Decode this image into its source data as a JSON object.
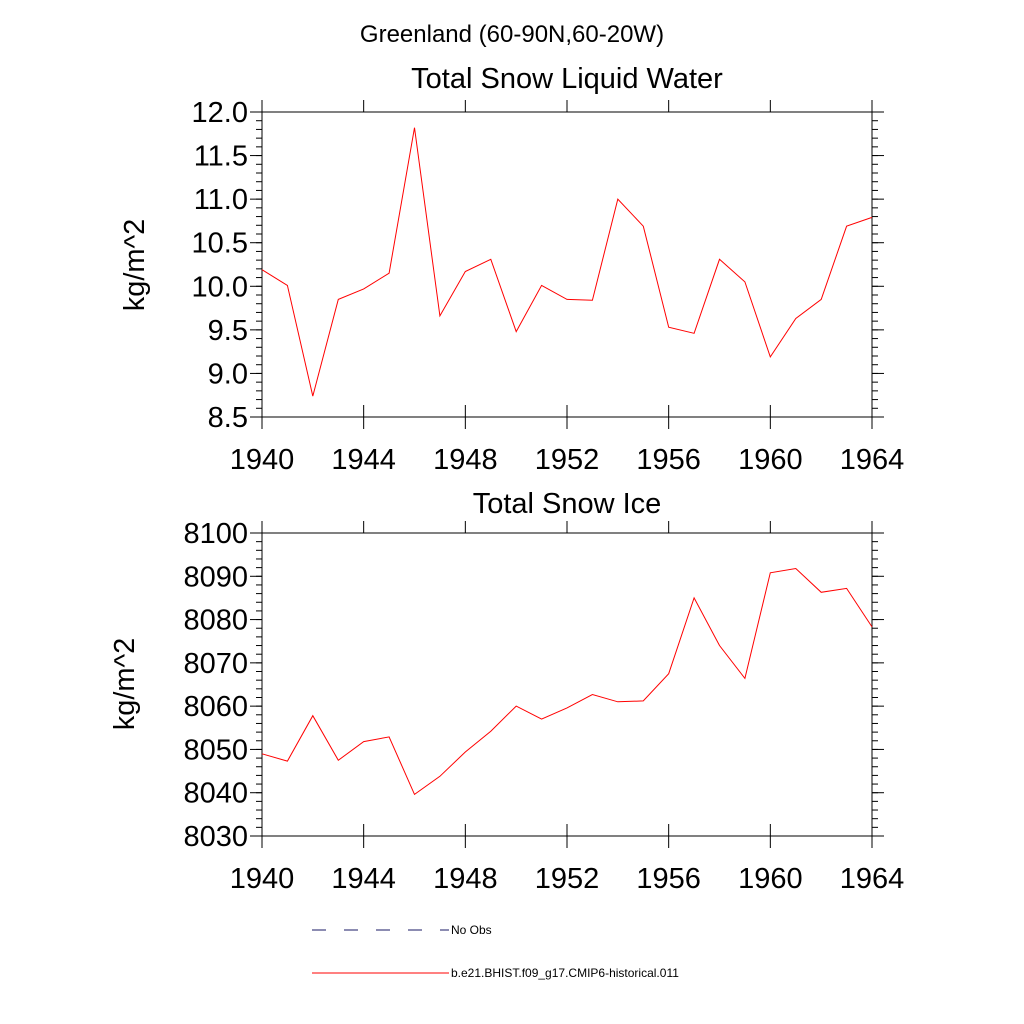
{
  "suptitle": "Greenland (60-90N,60-20W)",
  "colors": {
    "model": "#ff0000",
    "obs": "#1a1a66",
    "axis": "#000000"
  },
  "legend": [
    {
      "label": "No Obs",
      "style": "dashed",
      "color": "#1a1a66"
    },
    {
      "label": "b.e21.BHIST.f09_g17.CMIP6-historical.011",
      "style": "solid",
      "color": "#ff0000"
    }
  ],
  "chart_data": [
    {
      "type": "line",
      "title": "Total Snow Liquid Water",
      "xlabel": "",
      "ylabel": "kg/m^2",
      "xlim": [
        1940,
        1964
      ],
      "ylim": [
        8.5,
        12.0
      ],
      "xticks": [
        1940,
        1944,
        1948,
        1952,
        1956,
        1960,
        1964
      ],
      "yticks": [
        8.5,
        9.0,
        9.5,
        10.0,
        10.5,
        11.0,
        11.5,
        12.0
      ],
      "ytick_labels": [
        "8.5",
        "9.0",
        "9.5",
        "10.0",
        "10.5",
        "11.0",
        "11.5",
        "12.0"
      ],
      "minor_y_step": 0.1,
      "x": [
        1940,
        1941,
        1942,
        1943,
        1944,
        1945,
        1946,
        1947,
        1948,
        1949,
        1950,
        1951,
        1952,
        1953,
        1954,
        1955,
        1956,
        1957,
        1958,
        1959,
        1960,
        1961,
        1962,
        1963,
        1964
      ],
      "series": [
        {
          "name": "b.e21.BHIST.f09_g17.CMIP6-historical.011",
          "values": [
            10.19,
            10.01,
            8.74,
            9.85,
            9.97,
            10.15,
            11.82,
            9.66,
            10.17,
            10.31,
            9.48,
            10.01,
            9.85,
            9.84,
            11.0,
            10.69,
            9.53,
            9.46,
            10.31,
            10.05,
            9.19,
            9.63,
            9.85,
            10.69,
            10.79
          ]
        }
      ]
    },
    {
      "type": "line",
      "title": "Total Snow Ice",
      "xlabel": "",
      "ylabel": "kg/m^2",
      "xlim": [
        1940,
        1964
      ],
      "ylim": [
        8030,
        8100
      ],
      "xticks": [
        1940,
        1944,
        1948,
        1952,
        1956,
        1960,
        1964
      ],
      "yticks": [
        8030,
        8040,
        8050,
        8060,
        8070,
        8080,
        8090,
        8100
      ],
      "ytick_labels": [
        "8030",
        "8040",
        "8050",
        "8060",
        "8070",
        "8080",
        "8090",
        "8100"
      ],
      "minor_y_step": 2,
      "x": [
        1940,
        1941,
        1942,
        1943,
        1944,
        1945,
        1946,
        1947,
        1948,
        1949,
        1950,
        1951,
        1952,
        1953,
        1954,
        1955,
        1956,
        1957,
        1958,
        1959,
        1960,
        1961,
        1962,
        1963,
        1964
      ],
      "series": [
        {
          "name": "b.e21.BHIST.f09_g17.CMIP6-historical.011",
          "values": [
            8049,
            8047.3,
            8057.8,
            8047.5,
            8051.8,
            8052.9,
            8039.6,
            8043.8,
            8049.4,
            8054.2,
            8060.0,
            8057.0,
            8059.6,
            8062.7,
            8061.0,
            8061.2,
            8067.5,
            8085.0,
            8074.0,
            8066.4,
            8090.8,
            8091.8,
            8086.3,
            8087.2,
            8078.3
          ]
        }
      ]
    }
  ]
}
